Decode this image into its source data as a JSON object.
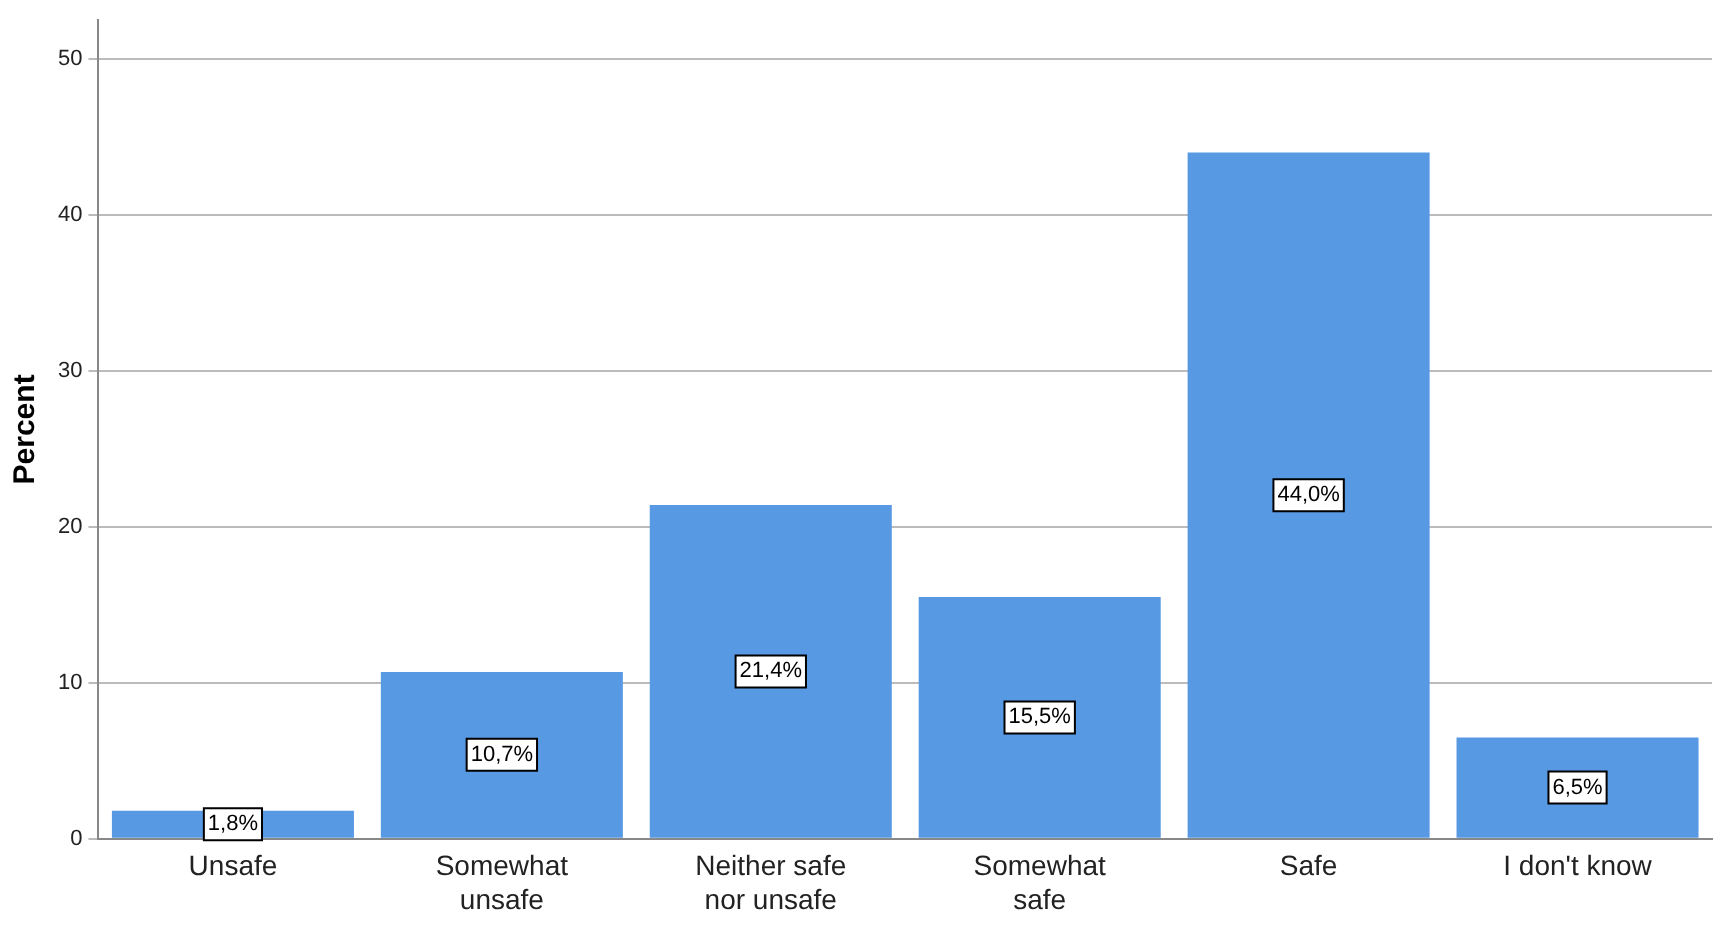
{
  "chart_data": {
    "type": "bar",
    "ylabel": "Percent",
    "categories": [
      "Unsafe",
      "Somewhat unsafe",
      "Neither safe nor unsafe",
      "Somewhat safe",
      "Safe",
      "I don't know"
    ],
    "values": [
      1.8,
      10.7,
      21.4,
      15.5,
      44.0,
      6.5
    ],
    "value_labels": [
      "1,8%",
      "10,7%",
      "21,4%",
      "15,5%",
      "44,0%",
      "6,5%"
    ],
    "color": "#5899e3",
    "ylim": [
      0,
      52.5
    ],
    "yticks": [
      0,
      10,
      20,
      30,
      40,
      50
    ],
    "grid": "y"
  }
}
